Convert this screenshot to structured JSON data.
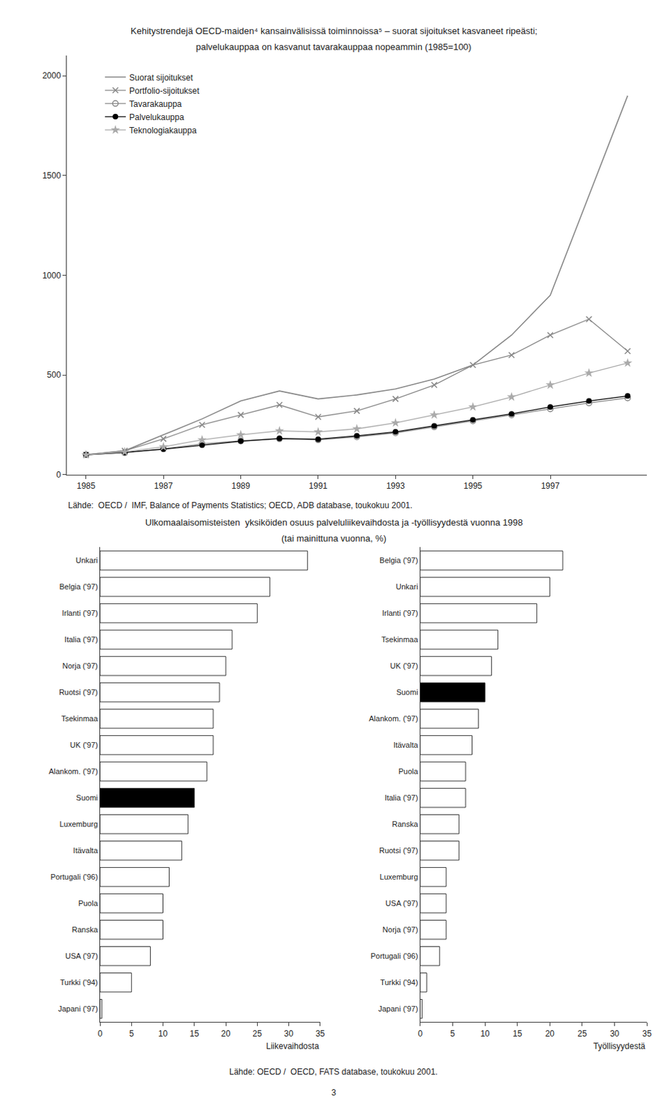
{
  "chart_data": [
    {
      "type": "line",
      "title": "Kehitystrendejä OECD-maiden⁴ kansainvälisissä toiminnoissa⁵ – suorat sijoitukset kasvaneet ripeästi;",
      "subtitle": "palvelukauppaa on kasvanut tavarakauppaa nopeammin (1985=100)",
      "x": [
        1985,
        1986,
        1987,
        1988,
        1989,
        1990,
        1991,
        1992,
        1993,
        1994,
        1995,
        1996,
        1997,
        1998,
        1999
      ],
      "series": [
        {
          "name": "Suorat sijoitukset",
          "color": "#888888",
          "values": [
            100,
            120,
            200,
            280,
            370,
            420,
            380,
            400,
            430,
            480,
            550,
            700,
            900,
            1400,
            1900
          ]
        },
        {
          "name": "Portfolio-sijoitukset",
          "color": "#888888",
          "marker": "x",
          "values": [
            100,
            120,
            180,
            250,
            300,
            350,
            290,
            320,
            380,
            450,
            550,
            600,
            700,
            780,
            620
          ]
        },
        {
          "name": "Tavarakauppa",
          "color": "#888888",
          "marker": "circle-open",
          "values": [
            100,
            110,
            130,
            155,
            170,
            180,
            175,
            190,
            210,
            240,
            270,
            300,
            330,
            360,
            385
          ]
        },
        {
          "name": "Palvelukauppa",
          "color": "#000000",
          "marker": "circle",
          "values": [
            100,
            112,
            128,
            148,
            168,
            182,
            178,
            195,
            215,
            245,
            275,
            305,
            340,
            370,
            395
          ]
        },
        {
          "name": "Teknologiakauppa",
          "color": "#aaaaaa",
          "marker": "star",
          "values": [
            100,
            115,
            140,
            175,
            200,
            220,
            215,
            230,
            260,
            300,
            340,
            390,
            450,
            510,
            560
          ]
        }
      ],
      "xlim": [
        1984.5,
        1999.5
      ],
      "xticks": [
        1985,
        1987,
        1989,
        1991,
        1993,
        1995,
        1997
      ],
      "ylim": [
        0,
        2100
      ],
      "yticks": [
        0,
        500,
        1000,
        1500,
        2000
      ],
      "grid": false,
      "legend": "upper left",
      "annotations": [
        "Lähde:  OECD /  IMF, Balance of Payments Statistics; OECD, ADB database, toukokuu 2001."
      ]
    },
    {
      "type": "bar",
      "orientation": "horizontal",
      "title": "Ulkomaalaisomisteisten  yksiköiden osuus palveluliikevaihdosta ja -työllisyydestä vuonna 1998",
      "subtitle": "(tai mainittuna vuonna, %)",
      "xlabel": "Liikevaihdosta",
      "categories": [
        "Unkari",
        "Belgia ('97)",
        "Irlanti ('97)",
        "Italia ('97)",
        "Norja ('97)",
        "Ruotsi ('97)",
        "Tsekinmaa",
        "UK ('97)",
        "Alankom. ('97)",
        "Suomi",
        "Luxemburg",
        "Itävalta",
        "Portugali ('96)",
        "Puola",
        "Ranska",
        "USA ('97)",
        "Turkki ('94)",
        "Japani ('97)"
      ],
      "values": [
        33,
        27,
        25,
        21,
        20,
        19,
        18,
        18,
        17,
        15,
        14,
        13,
        11,
        10,
        10,
        8,
        5,
        0.3
      ],
      "colors": [
        "#ffffff",
        "#ffffff",
        "#ffffff",
        "#ffffff",
        "#ffffff",
        "#ffffff",
        "#ffffff",
        "#ffffff",
        "#ffffff",
        "#000000",
        "#ffffff",
        "#ffffff",
        "#ffffff",
        "#ffffff",
        "#ffffff",
        "#ffffff",
        "#ffffff",
        "#ffffff"
      ],
      "xlim": [
        0,
        35
      ],
      "xticks": [
        0,
        5,
        10,
        15,
        20,
        25,
        30,
        35
      ],
      "grid": false
    },
    {
      "type": "bar",
      "orientation": "horizontal",
      "xlabel": "Työllisyydestä",
      "categories": [
        "Belgia ('97)",
        "Unkari",
        "Irlanti ('97)",
        "Tsekinmaa",
        "UK ('97)",
        "Suomi",
        "Alankom. ('97)",
        "Itävalta",
        "Puola",
        "Italia ('97)",
        "Ranska",
        "Ruotsi ('97)",
        "Luxemburg",
        "USA ('97)",
        "Norja ('97)",
        "Portugali ('96)",
        "Turkki ('94)",
        "Japani ('97)"
      ],
      "values": [
        22,
        20,
        18,
        12,
        11,
        10,
        9,
        8,
        7,
        7,
        6,
        6,
        4,
        4,
        4,
        3,
        1,
        0.3
      ],
      "colors": [
        "#ffffff",
        "#ffffff",
        "#ffffff",
        "#ffffff",
        "#ffffff",
        "#000000",
        "#ffffff",
        "#ffffff",
        "#ffffff",
        "#ffffff",
        "#ffffff",
        "#ffffff",
        "#ffffff",
        "#ffffff",
        "#ffffff",
        "#ffffff",
        "#ffffff",
        "#ffffff"
      ],
      "xlim": [
        0,
        35
      ],
      "xticks": [
        0,
        5,
        10,
        15,
        20,
        25,
        30,
        35
      ],
      "grid": false,
      "annotations": [
        "Lähde: OECD /  OECD, FATS database, toukokuu 2001.",
        "3"
      ]
    }
  ]
}
